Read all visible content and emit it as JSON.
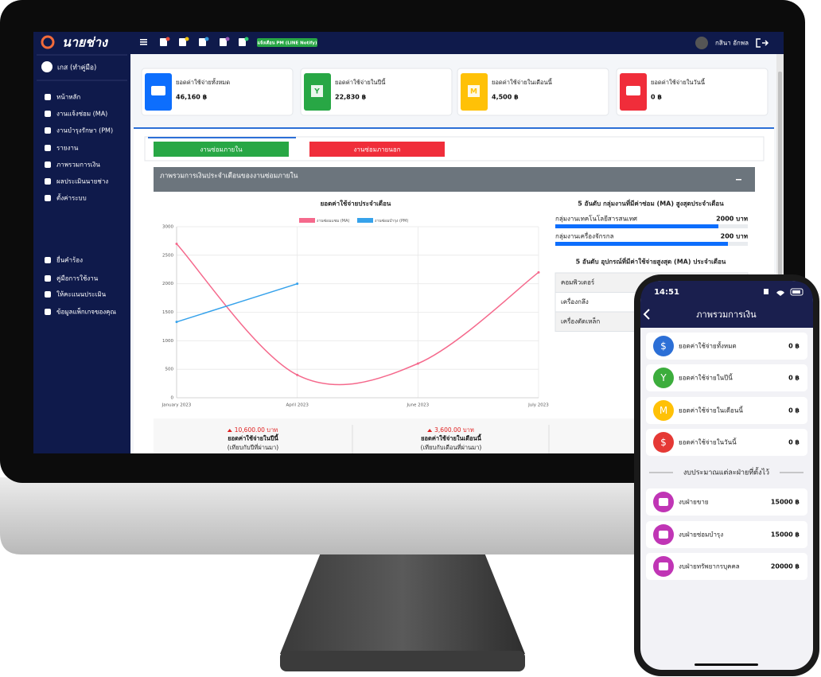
{
  "brand": "นายช่าง",
  "user_name": "เกส (ทำคู่มือ)",
  "sidebar": {
    "menu": [
      "หน้าหลัก",
      "งานแจ้งซ่อม (MA)",
      "งานบำรุงรักษา (PM)",
      "รายงาน",
      "ภาพรวมการเงิน",
      "ผลประเมินนายช่าง",
      "ตั้งค่าระบบ"
    ],
    "menu_bottom": [
      "ยื่นคำร้อง",
      "คู่มือการใช้งาน",
      "ให้คะแนนประเมิน",
      "ข้อมูลแพ็กเกจของคุณ"
    ]
  },
  "topbar": {
    "notify_badge": "แจ้งเตือน PM (LINE Notify)",
    "account": "กสินา อักพล"
  },
  "stat_cards": [
    {
      "label": "ยอดค่าใช้จ่ายทั้งหมด",
      "value": "46,160 ฿"
    },
    {
      "label": "ยอดค่าใช้จ่ายในปีนี้",
      "icon": "Y",
      "value": "22,830 ฿"
    },
    {
      "label": "ยอดค่าใช้จ่ายในเดือนนี้",
      "icon": "M",
      "value": "4,500 ฿"
    },
    {
      "label": "ยอดค่าใช้จ่ายในวันนี้",
      "value": "0 ฿"
    }
  ],
  "tabs": [
    "งานซ่อมภายใน",
    "งานซ่อมภายนอก"
  ],
  "panel_title": "ภาพรวมการเงินประจำเดือนของงานซ่อมภายใน",
  "chart_data": {
    "type": "line",
    "title": "ยอดค่าใช้จ่ายประจำเดือน",
    "categories": [
      "January 2023",
      "April 2023",
      "June 2023",
      "July 2023"
    ],
    "series": [
      {
        "name": "งานซ่อมแซม (MA)",
        "color": "#f5698c",
        "values": [
          2700,
          400,
          600,
          2200
        ]
      },
      {
        "name": "งานซ่อมบำรุง (PM)",
        "color": "#36a2eb",
        "values": [
          1330,
          2000,
          null,
          null
        ]
      }
    ],
    "ylim": [
      0,
      3000
    ],
    "yticks": [
      0,
      500,
      1000,
      1500,
      2000,
      2500,
      3000
    ],
    "grid": true,
    "smooth": true
  },
  "top_groups": {
    "title": "5 อันดับ กลุ่มงานที่มีค่าซ่อม (MA) สูงสุดประจำเดือน",
    "rows": [
      {
        "name": "กลุ่มงานเทคโนโลยีสารสนเทศ",
        "amount": "2000 บาท"
      },
      {
        "name": "กลุ่มงานเครื่องจักรกล",
        "amount": "200 บาท"
      }
    ]
  },
  "top_equipment": {
    "title": "5 อันดับ อุปกรณ์ที่มีค่าใช้จ่ายสูงสุด (MA) ประจำเดือน",
    "rows": [
      "คอมพิวเตอร์",
      "เครื่องกลึง",
      "เครื่องตัดเหล็ก"
    ]
  },
  "summary": [
    {
      "change": "10,600.00 บาท",
      "label": "ยอดค่าใช้จ่ายในปีนี้",
      "note": "(เทียบกับปีที่ผ่านมา)"
    },
    {
      "change": "3,600.00 บาท",
      "label": "ยอดค่าใช้จ่ายในเดือนนี้",
      "note": "(เทียบกับเดือนที่ผ่านมา)"
    }
  ],
  "phone": {
    "time": "14:51",
    "title": "ภาพรวมการเงิน",
    "items": [
      {
        "icon": "$",
        "label": "ยอดค่าใช้จ่ายทั้งหมด",
        "value": "0 ฿"
      },
      {
        "icon": "Y",
        "label": "ยอดค่าใช้จ่ายในปีนี้",
        "value": "0 ฿"
      },
      {
        "icon": "M",
        "label": "ยอดค่าใช้จ่ายในเดือนนี้",
        "value": "0 ฿"
      },
      {
        "icon": "$",
        "label": "ยอดค่าใช้จ่ายในวันนี้",
        "value": "0 ฿"
      }
    ],
    "section": "งบประมาณแต่ละฝ่ายที่ตั้งไว้",
    "budgets": [
      {
        "label": "งบฝ่ายขาย",
        "value": "15000 ฿"
      },
      {
        "label": "งบฝ่ายซ่อมบำรุง",
        "value": "15000 ฿"
      },
      {
        "label": "งบฝ่ายทรัพยากรบุคคล",
        "value": "20000 ฿"
      }
    ]
  }
}
